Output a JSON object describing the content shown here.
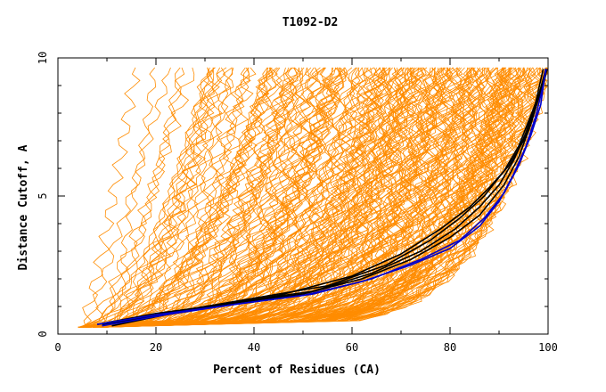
{
  "chart_data": {
    "type": "line",
    "title": "T1092-D2",
    "xlabel": "Percent of Residues (CA)",
    "ylabel": "Distance Cutoff, A",
    "xlim": [
      0,
      100
    ],
    "ylim": [
      0,
      10
    ],
    "x_ticks": [
      "0",
      "20",
      "40",
      "60",
      "80",
      "100"
    ],
    "y_ticks": [
      "0",
      "5",
      "10"
    ],
    "grid": false,
    "legend": "none",
    "colors": {
      "models": "#ff8c00",
      "highlight_black": "#000000",
      "highlight_blue": "#0000cc"
    },
    "series_groups": [
      {
        "group": "models",
        "color": "#ff8c00",
        "count": 240
      },
      {
        "group": "highlight_black",
        "color": "#000000",
        "count": 4
      },
      {
        "group": "highlight_blue",
        "color": "#0000cc",
        "count": 2
      }
    ],
    "highlight_series": [
      {
        "color": "#000000",
        "points": [
          [
            8,
            0.35
          ],
          [
            20,
            0.75
          ],
          [
            35,
            1.1
          ],
          [
            50,
            1.45
          ],
          [
            62,
            2.0
          ],
          [
            72,
            2.7
          ],
          [
            80,
            3.5
          ],
          [
            86,
            4.3
          ],
          [
            91,
            5.4
          ],
          [
            94,
            6.4
          ],
          [
            96.5,
            7.6
          ],
          [
            98.5,
            8.8
          ],
          [
            99.5,
            9.6
          ]
        ]
      },
      {
        "color": "#000000",
        "points": [
          [
            11,
            0.3
          ],
          [
            22,
            0.7
          ],
          [
            38,
            1.2
          ],
          [
            52,
            1.55
          ],
          [
            64,
            2.2
          ],
          [
            74,
            3.0
          ],
          [
            81,
            3.8
          ],
          [
            86,
            4.6
          ],
          [
            90,
            5.4
          ],
          [
            93,
            6.3
          ],
          [
            95.5,
            7.3
          ],
          [
            97.5,
            8.4
          ],
          [
            99,
            9.6
          ]
        ]
      },
      {
        "color": "#000000",
        "points": [
          [
            9,
            0.35
          ],
          [
            25,
            0.85
          ],
          [
            40,
            1.3
          ],
          [
            55,
            1.75
          ],
          [
            67,
            2.5
          ],
          [
            76,
            3.4
          ],
          [
            82,
            4.2
          ],
          [
            87,
            5.0
          ],
          [
            91,
            5.9
          ],
          [
            94,
            6.8
          ],
          [
            96,
            7.7
          ],
          [
            98,
            8.6
          ],
          [
            99.6,
            9.6
          ]
        ]
      },
      {
        "color": "#000000",
        "points": [
          [
            10,
            0.35
          ],
          [
            25,
            0.8
          ],
          [
            45,
            1.4
          ],
          [
            60,
            2.1
          ],
          [
            70,
            2.9
          ],
          [
            78,
            3.8
          ],
          [
            84,
            4.6
          ],
          [
            88,
            5.3
          ],
          [
            92,
            6.1
          ],
          [
            95,
            7.0
          ],
          [
            97,
            8.0
          ],
          [
            99,
            9.0
          ],
          [
            99.8,
            9.6
          ]
        ]
      },
      {
        "color": "#0000cc",
        "points": [
          [
            8,
            0.35
          ],
          [
            20,
            0.7
          ],
          [
            35,
            1.05
          ],
          [
            50,
            1.4
          ],
          [
            62,
            1.9
          ],
          [
            72,
            2.5
          ],
          [
            80,
            3.1
          ],
          [
            86,
            3.9
          ],
          [
            90,
            4.8
          ],
          [
            93,
            5.8
          ],
          [
            95.5,
            6.8
          ],
          [
            97.5,
            7.9
          ],
          [
            99,
            9.0
          ],
          [
            99.6,
            9.6
          ]
        ]
      },
      {
        "color": "#0000cc",
        "points": [
          [
            9,
            0.3
          ],
          [
            22,
            0.7
          ],
          [
            37,
            1.1
          ],
          [
            52,
            1.45
          ],
          [
            64,
            2.0
          ],
          [
            74,
            2.7
          ],
          [
            82,
            3.4
          ],
          [
            87,
            4.2
          ],
          [
            91,
            5.1
          ],
          [
            94,
            6.1
          ],
          [
            96.5,
            7.2
          ],
          [
            98.5,
            8.3
          ],
          [
            99.5,
            9.6
          ]
        ]
      }
    ]
  }
}
